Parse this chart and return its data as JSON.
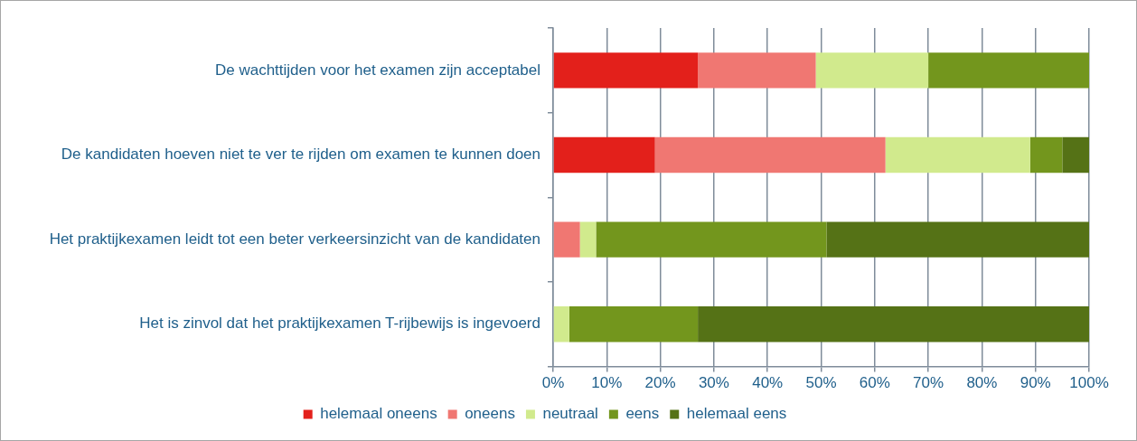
{
  "chart_data": {
    "type": "bar",
    "orientation": "horizontal",
    "stacked": true,
    "categories": [
      "De wachttijden voor het examen zijn acceptabel",
      "De kandidaten hoeven niet te ver te rijden om examen te kunnen doen",
      "Het praktijkexamen leidt tot een beter verkeersinzicht van de kandidaten",
      "Het is zinvol dat het praktijkexamen T-rijbewijs is ingevoerd"
    ],
    "series": [
      {
        "name": "helemaal oneens",
        "color": "#e3201b",
        "values": [
          27,
          19,
          0,
          0
        ]
      },
      {
        "name": "oneens",
        "color": "#f07772",
        "values": [
          22,
          43,
          5,
          0
        ]
      },
      {
        "name": "neutraal",
        "color": "#d1ea8d",
        "values": [
          21,
          27,
          3,
          3
        ]
      },
      {
        "name": "eens",
        "color": "#73961d",
        "values": [
          30,
          6,
          43,
          24
        ]
      },
      {
        "name": "helemaal eens",
        "color": "#557216",
        "values": [
          0,
          5,
          49,
          73
        ]
      }
    ],
    "xlim": [
      0,
      100
    ],
    "xticks": [
      {
        "value": 0,
        "label": "0%"
      },
      {
        "value": 10,
        "label": "10%"
      },
      {
        "value": 20,
        "label": "20%"
      },
      {
        "value": 30,
        "label": "30%"
      },
      {
        "value": 40,
        "label": "40%"
      },
      {
        "value": 50,
        "label": "50%"
      },
      {
        "value": 60,
        "label": "60%"
      },
      {
        "value": 70,
        "label": "70%"
      },
      {
        "value": 80,
        "label": "80%"
      },
      {
        "value": 90,
        "label": "90%"
      },
      {
        "value": 100,
        "label": "100%"
      }
    ],
    "grid": "x",
    "legend": "bottom"
  }
}
